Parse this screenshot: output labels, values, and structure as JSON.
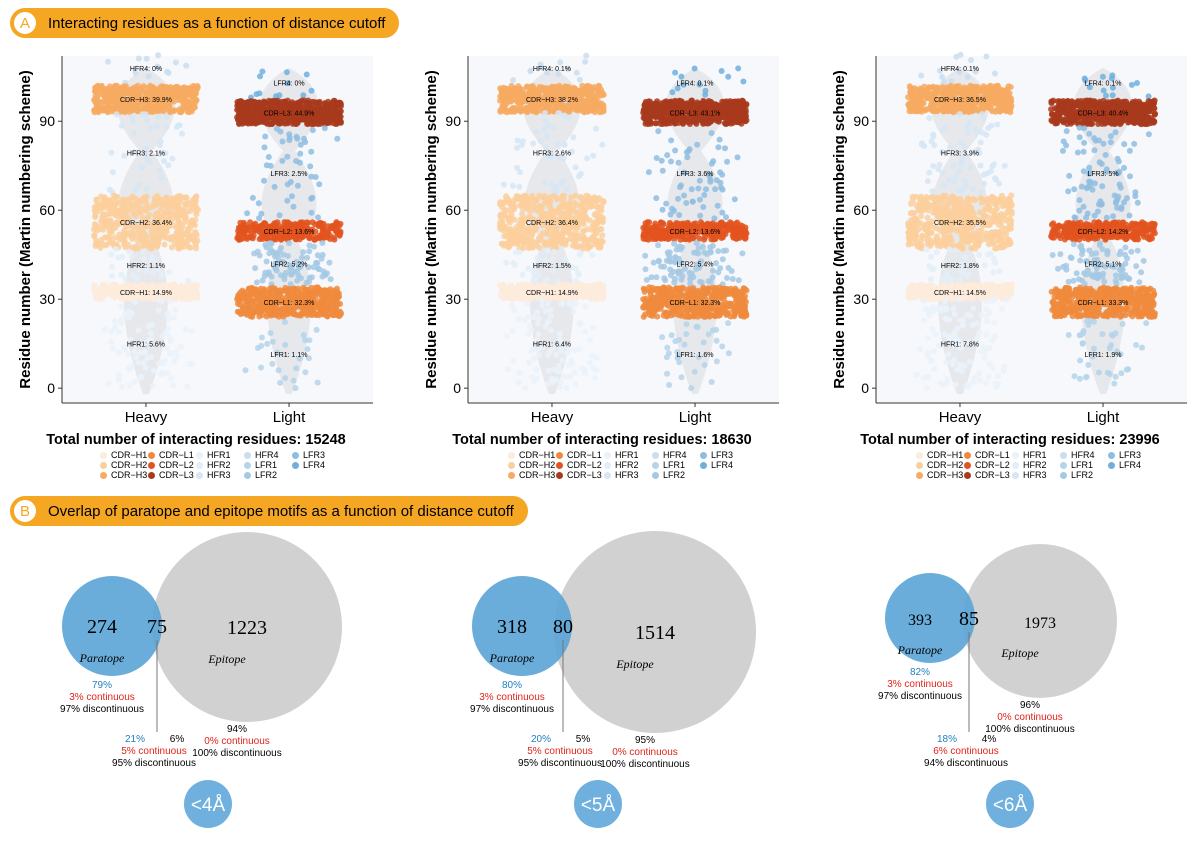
{
  "section_a": {
    "letter": "A",
    "title": "Interacting residues as a function of distance cutoff"
  },
  "section_b": {
    "letter": "B",
    "title": "Overlap of paratope and epitope motifs as a function of distance cutoff"
  },
  "colors": {
    "CDR-H1": "#fdebdc",
    "CDR-H2": "#fbcf9c",
    "CDR-H3": "#f7aa62",
    "CDR-L1": "#f08a3c",
    "CDR-L2": "#e3531f",
    "CDR-L3": "#a93a1c",
    "HFR1": "#eaf2fa",
    "HFR2": "#e3eef8",
    "HFR3": "#d6e6f4",
    "HFR4": "#c9def0",
    "LFR1": "#b5d3ea",
    "LFR2": "#a4c9e4",
    "LFR3": "#8fbde0",
    "LFR4": "#6fb0de",
    "paratope": "#5aa3d6",
    "epitope": "#c9c9c9",
    "accent": "#f5a623",
    "blue_text": "#1f7fc1",
    "red_text": "#e2231a",
    "badge": "#6fb0de"
  },
  "legend_labels": [
    "CDR−H1",
    "CDR−H2",
    "CDR−H3",
    "CDR−L1",
    "CDR−L2",
    "CDR−L3",
    "HFR1",
    "HFR2",
    "HFR3",
    "HFR4",
    "LFR1",
    "LFR2",
    "LFR3",
    "LFR4"
  ],
  "chart_data": [
    {
      "type": "scatter",
      "ylabel": "Residue number (Martin numbering scheme)",
      "xlabel": "Total number of interacting residues: 15248",
      "categories": [
        "Heavy",
        "Light"
      ],
      "ylim": [
        -5,
        112
      ],
      "yticks": [
        0,
        30,
        60,
        90
      ],
      "regions": [
        {
          "chain": "Heavy",
          "name": "HFR4",
          "label": "HFR4: 0%",
          "range": [
            103,
            113
          ],
          "pct": 0
        },
        {
          "chain": "Heavy",
          "name": "CDR-H3",
          "label": "CDR−H3: 39.9%",
          "range": [
            93,
            102
          ],
          "pct": 39.9
        },
        {
          "chain": "Heavy",
          "name": "HFR3",
          "label": "HFR3: 2.1%",
          "range": [
            66,
            93
          ],
          "pct": 2.1
        },
        {
          "chain": "Heavy",
          "name": "CDR-H2",
          "label": "CDR−H2: 36.4%",
          "range": [
            47,
            65
          ],
          "pct": 36.4
        },
        {
          "chain": "Heavy",
          "name": "HFR2",
          "label": "HFR2: 1.1%",
          "range": [
            36,
            47
          ],
          "pct": 1.1
        },
        {
          "chain": "Heavy",
          "name": "CDR-H1",
          "label": "CDR−H1: 14.9%",
          "range": [
            30,
            35
          ],
          "pct": 14.9
        },
        {
          "chain": "Heavy",
          "name": "HFR1",
          "label": "HFR1: 5.6%",
          "range": [
            0,
            30
          ],
          "pct": 5.6
        },
        {
          "chain": "Light",
          "name": "LFR4",
          "label": "LFR4: 0%",
          "range": [
            98,
            108
          ],
          "pct": 0
        },
        {
          "chain": "Light",
          "name": "CDR-L3",
          "label": "CDR−L3: 44.9%",
          "range": [
            89,
            97
          ],
          "pct": 44.9
        },
        {
          "chain": "Light",
          "name": "LFR3",
          "label": "LFR3: 2.5%",
          "range": [
            57,
            88
          ],
          "pct": 2.5
        },
        {
          "chain": "Light",
          "name": "CDR-L2",
          "label": "CDR−L2: 13.6%",
          "range": [
            50,
            56
          ],
          "pct": 13.6
        },
        {
          "chain": "Light",
          "name": "LFR2",
          "label": "LFR2: 5.2%",
          "range": [
            35,
            49
          ],
          "pct": 5.2
        },
        {
          "chain": "Light",
          "name": "CDR-L1",
          "label": "CDR−L1: 32.3%",
          "range": [
            24,
            34
          ],
          "pct": 32.3
        },
        {
          "chain": "Light",
          "name": "LFR1",
          "label": "LFR1: 1.1%",
          "range": [
            0,
            23
          ],
          "pct": 1.1
        }
      ]
    },
    {
      "type": "scatter",
      "ylabel": "Residue number (Martin numbering scheme)",
      "xlabel": "Total number of interacting residues: 18630",
      "categories": [
        "Heavy",
        "Light"
      ],
      "ylim": [
        -5,
        112
      ],
      "yticks": [
        0,
        30,
        60,
        90
      ],
      "regions": [
        {
          "chain": "Heavy",
          "name": "HFR4",
          "label": "HFR4: 0.1%",
          "range": [
            103,
            113
          ],
          "pct": 0.1
        },
        {
          "chain": "Heavy",
          "name": "CDR-H3",
          "label": "CDR−H3: 38.2%",
          "range": [
            93,
            102
          ],
          "pct": 38.2
        },
        {
          "chain": "Heavy",
          "name": "HFR3",
          "label": "HFR3: 2.6%",
          "range": [
            66,
            93
          ],
          "pct": 2.6
        },
        {
          "chain": "Heavy",
          "name": "CDR-H2",
          "label": "CDR−H2: 36.4%",
          "range": [
            47,
            65
          ],
          "pct": 36.4
        },
        {
          "chain": "Heavy",
          "name": "HFR2",
          "label": "HFR2: 1.5%",
          "range": [
            36,
            47
          ],
          "pct": 1.5
        },
        {
          "chain": "Heavy",
          "name": "CDR-H1",
          "label": "CDR−H1: 14.9%",
          "range": [
            30,
            35
          ],
          "pct": 14.9
        },
        {
          "chain": "Heavy",
          "name": "HFR1",
          "label": "HFR1: 6.4%",
          "range": [
            0,
            30
          ],
          "pct": 6.4
        },
        {
          "chain": "Light",
          "name": "LFR4",
          "label": "LFR4: 0.1%",
          "range": [
            98,
            108
          ],
          "pct": 0.1
        },
        {
          "chain": "Light",
          "name": "CDR-L3",
          "label": "CDR−L3: 43.1%",
          "range": [
            89,
            97
          ],
          "pct": 43.1
        },
        {
          "chain": "Light",
          "name": "LFR3",
          "label": "LFR3: 3.6%",
          "range": [
            57,
            88
          ],
          "pct": 3.6
        },
        {
          "chain": "Light",
          "name": "CDR-L2",
          "label": "CDR−L2: 13.6%",
          "range": [
            50,
            56
          ],
          "pct": 13.6
        },
        {
          "chain": "Light",
          "name": "LFR2",
          "label": "LFR2: 5.4%",
          "range": [
            35,
            49
          ],
          "pct": 5.4
        },
        {
          "chain": "Light",
          "name": "CDR-L1",
          "label": "CDR−L1: 32.3%",
          "range": [
            24,
            34
          ],
          "pct": 32.3
        },
        {
          "chain": "Light",
          "name": "LFR1",
          "label": "LFR1: 1.6%",
          "range": [
            0,
            23
          ],
          "pct": 1.6
        }
      ]
    },
    {
      "type": "scatter",
      "ylabel": "Residue number (Martin numbering scheme)",
      "xlabel": "Total number of interacting residues: 23996",
      "categories": [
        "Heavy",
        "Light"
      ],
      "ylim": [
        -5,
        112
      ],
      "yticks": [
        0,
        30,
        60,
        90
      ],
      "regions": [
        {
          "chain": "Heavy",
          "name": "HFR4",
          "label": "HFR4: 0.1%",
          "range": [
            103,
            113
          ],
          "pct": 0.1
        },
        {
          "chain": "Heavy",
          "name": "CDR-H3",
          "label": "CDR−H3: 36.5%",
          "range": [
            93,
            102
          ],
          "pct": 36.5
        },
        {
          "chain": "Heavy",
          "name": "HFR3",
          "label": "HFR3: 3.9%",
          "range": [
            66,
            93
          ],
          "pct": 3.9
        },
        {
          "chain": "Heavy",
          "name": "CDR-H2",
          "label": "CDR−H2: 35.5%",
          "range": [
            47,
            65
          ],
          "pct": 35.5
        },
        {
          "chain": "Heavy",
          "name": "HFR2",
          "label": "HFR2: 1.8%",
          "range": [
            36,
            47
          ],
          "pct": 1.8
        },
        {
          "chain": "Heavy",
          "name": "CDR-H1",
          "label": "CDR−H1: 14.5%",
          "range": [
            30,
            35
          ],
          "pct": 14.5
        },
        {
          "chain": "Heavy",
          "name": "HFR1",
          "label": "HFR1: 7.8%",
          "range": [
            0,
            30
          ],
          "pct": 7.8
        },
        {
          "chain": "Light",
          "name": "LFR4",
          "label": "LFR4: 0.1%",
          "range": [
            98,
            108
          ],
          "pct": 0.1
        },
        {
          "chain": "Light",
          "name": "CDR-L3",
          "label": "CDR−L3: 40.4%",
          "range": [
            89,
            97
          ],
          "pct": 40.4
        },
        {
          "chain": "Light",
          "name": "LFR3",
          "label": "LFR3: 5%",
          "range": [
            57,
            88
          ],
          "pct": 5
        },
        {
          "chain": "Light",
          "name": "CDR-L2",
          "label": "CDR−L2: 14.2%",
          "range": [
            50,
            56
          ],
          "pct": 14.2
        },
        {
          "chain": "Light",
          "name": "LFR2",
          "label": "LFR2: 5.1%",
          "range": [
            35,
            49
          ],
          "pct": 5.1
        },
        {
          "chain": "Light",
          "name": "CDR-L1",
          "label": "CDR−L1: 33.3%",
          "range": [
            24,
            34
          ],
          "pct": 33.3
        },
        {
          "chain": "Light",
          "name": "LFR1",
          "label": "LFR1: 1.9%",
          "range": [
            0,
            23
          ],
          "pct": 1.9
        }
      ]
    }
  ],
  "venns": [
    {
      "cutoff": "<4Å",
      "paratope_only": "274",
      "overlap": "75",
      "epitope_only": "1223",
      "paratope_label": "Paratope",
      "epitope_label": "Epitope",
      "para_pct": "79%",
      "para_cont": "3% continuous",
      "para_disc": "97% discontinuous",
      "ov_para_pct": "21%",
      "ov_epi_pct": "6%",
      "ov_cont": "5% continuous",
      "ov_disc": "95% discontinuous",
      "epi_pct": "94%",
      "epi_cont": "0% continuous",
      "epi_disc": "100% discontinuous"
    },
    {
      "cutoff": "<5Å",
      "paratope_only": "318",
      "overlap": "80",
      "epitope_only": "1514",
      "paratope_label": "Paratope",
      "epitope_label": "Epitope",
      "para_pct": "80%",
      "para_cont": "3% continuous",
      "para_disc": "97% discontinuous",
      "ov_para_pct": "20%",
      "ov_epi_pct": "5%",
      "ov_cont": "5% continuous",
      "ov_disc": "95% discontinuous",
      "epi_pct": "95%",
      "epi_cont": "0% continuous",
      "epi_disc": "100% discontinuous"
    },
    {
      "cutoff": "<6Å",
      "paratope_only": "393",
      "overlap": "85",
      "epitope_only": "1973",
      "paratope_label": "Paratope",
      "epitope_label": "Epitope",
      "para_pct": "82%",
      "para_cont": "3% continuous",
      "para_disc": "97% discontinuous",
      "ov_para_pct": "18%",
      "ov_epi_pct": "4%",
      "ov_cont": "6% continuous",
      "ov_disc": "94% discontinuous",
      "epi_pct": "96%",
      "epi_cont": "0% continuous",
      "epi_disc": "100% discontinuous"
    }
  ]
}
